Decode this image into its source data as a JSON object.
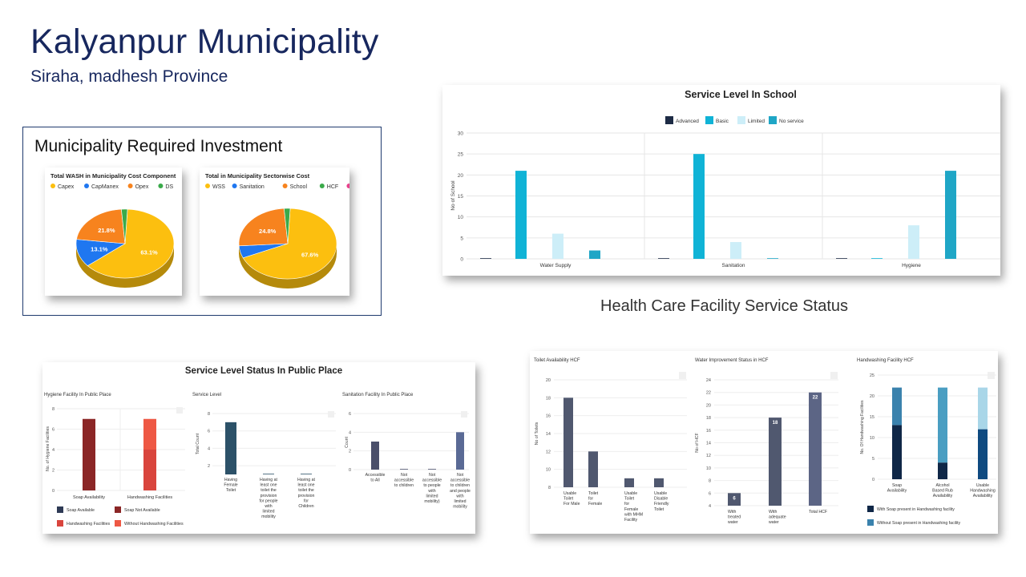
{
  "header": {
    "title": "Kalyanpur Municipality",
    "subtitle": "Siraha, madhesh Province",
    "investment_title": "Municipality Required Investment",
    "hcf_title": "Health Care Facility Service Status"
  },
  "chart_data": [
    {
      "id": "pie1",
      "type": "pie",
      "title": "Total WASH in Municipality Cost Component",
      "legend": [
        "Capex",
        "CapManex",
        "Opex",
        "DS"
      ],
      "values": [
        63.1,
        13.1,
        21.8,
        2.0
      ],
      "labels": [
        "63.1%",
        "13.1%",
        "21.8%",
        ""
      ],
      "colors": [
        "#fcbf0f",
        "#1f77f0",
        "#f7831e",
        "#3aaa4a"
      ]
    },
    {
      "id": "pie2",
      "type": "pie",
      "title": "Total in Municipality Sectorwise Cost",
      "legend": [
        "WSS",
        "Sanitation",
        "School",
        "HCF",
        "PP"
      ],
      "values": [
        67.6,
        5.6,
        24.8,
        2.0,
        0.0
      ],
      "labels": [
        "67.6%",
        "",
        "24.8%",
        "",
        ""
      ],
      "colors": [
        "#fcbf0f",
        "#1f77f0",
        "#f7831e",
        "#3aaa4a",
        "#e8418c"
      ]
    },
    {
      "id": "school",
      "type": "bar",
      "title": "Service Level In School",
      "ylabel": "No of School",
      "categories": [
        "Water Supply",
        "Sanitation",
        "Hygiene"
      ],
      "series": [
        {
          "name": "Advanced",
          "color": "#1d2b45",
          "values": [
            0,
            0,
            0
          ]
        },
        {
          "name": "Basic",
          "color": "#10b3d6",
          "values": [
            21,
            25,
            0
          ]
        },
        {
          "name": "Limited",
          "color": "#cdeef8",
          "values": [
            6,
            4,
            8
          ]
        },
        {
          "name": "No service",
          "color": "#1fa6c6",
          "values": [
            2,
            0,
            21
          ]
        }
      ],
      "ylim": [
        0,
        30
      ],
      "yticks": [
        "0",
        "5",
        "10",
        "15",
        "20",
        "25",
        "30"
      ]
    },
    {
      "id": "pp_hygiene",
      "type": "bar",
      "title": "Hygiene Facility In Public Place",
      "ylabel": "No. of Hygiene Facilities",
      "categories": [
        "Soap Availability",
        "Handwashing Facilities"
      ],
      "series": [
        {
          "name": "Soap Available",
          "color": "#2e3a55",
          "values": [
            0,
            0
          ]
        },
        {
          "name": "Soap Not Available",
          "color": "#8b2626",
          "values": [
            7,
            0
          ]
        },
        {
          "name": "Handwashing Facilities",
          "color": "#d9453d",
          "values": [
            0,
            4
          ]
        },
        {
          "name": "Without Handwashing Facilities",
          "color": "#ee5844",
          "values": [
            0,
            3
          ]
        }
      ],
      "ylim": [
        0,
        8
      ],
      "yticks": [
        "0",
        "2",
        "4",
        "6",
        "8"
      ]
    },
    {
      "id": "pp_service",
      "type": "bar",
      "title": "Service Level",
      "ylabel": "Total Count",
      "categories": [
        "Having Female Toilet",
        "Having at least one toilet the provision for people with limited mobility",
        "Having at least one toilet the provision for Children"
      ],
      "values": [
        7,
        1,
        1
      ],
      "color": "#2c5168",
      "ylim": [
        0,
        8
      ],
      "yticks": [
        "2",
        "4",
        "6",
        "8"
      ]
    },
    {
      "id": "pp_sanitation",
      "type": "bar",
      "title": "Sanitation Facility In Public Place",
      "ylabel": "Count",
      "categories": [
        "Accessible to All",
        "Not accessible to children",
        "Not accessible to people with limited mobility)",
        "Not accessible to children and people with limited mobility"
      ],
      "values": [
        3,
        0,
        0,
        4
      ],
      "color": "#4a4f6a",
      "last_color": "#5a6a95",
      "ylim": [
        0,
        6
      ],
      "yticks": [
        "0",
        "2",
        "4",
        "6"
      ]
    },
    {
      "id": "hcf_toilet",
      "type": "bar",
      "title": "Toilet Availability HCF",
      "ylabel": "No of Toilets",
      "categories": [
        "Usable Toilet For Male",
        "Toilet for Female",
        "Usable Toilet for Female with MHM Facility",
        "Usable Disable Friendly Toilet"
      ],
      "values": [
        18,
        12,
        9,
        9
      ],
      "color": "#50586f",
      "ylim": [
        8,
        20
      ],
      "yticks": [
        "8",
        "10",
        "12",
        "14",
        "16",
        "18",
        "20"
      ]
    },
    {
      "id": "hcf_water",
      "type": "bar",
      "title": "Water Improvement Status in HCF",
      "ylabel": "No of HCF",
      "categories": [
        "With treated water",
        "With adequate water",
        "Total HCF"
      ],
      "values": [
        6,
        18,
        22
      ],
      "data_labels": [
        "6",
        "18",
        "22"
      ],
      "color": "#50586f",
      "last_color": "#5c6585",
      "ylim": [
        4,
        24
      ],
      "yticks": [
        "4",
        "6",
        "8",
        "10",
        "12",
        "14",
        "16",
        "18",
        "20",
        "22",
        "24"
      ]
    },
    {
      "id": "hcf_hand",
      "type": "bar",
      "title": "Handwashing Facility HCF",
      "ylabel": "No. Of Handwashing Facilities",
      "categories": [
        "Soap Availability",
        "Alcohol Based Rub Availability",
        "Usable Handwashing Availability"
      ],
      "series": [
        {
          "name": "With Soap present in Handwashing facility",
          "colors": [
            "#0f2747",
            "#0f2747",
            "#0f4a80"
          ],
          "values": [
            13,
            4,
            12
          ]
        },
        {
          "name": "Without Soap present in Handwashing facility",
          "colors": [
            "#3a82ad",
            "#4a9ec2",
            "#a9d6e8"
          ],
          "values": [
            9,
            18,
            10
          ]
        }
      ],
      "ylim": [
        0,
        25
      ],
      "yticks": [
        "0",
        "5",
        "10",
        "15",
        "20",
        "25"
      ]
    }
  ],
  "public_place_title": "Service Level Status In Public Place"
}
